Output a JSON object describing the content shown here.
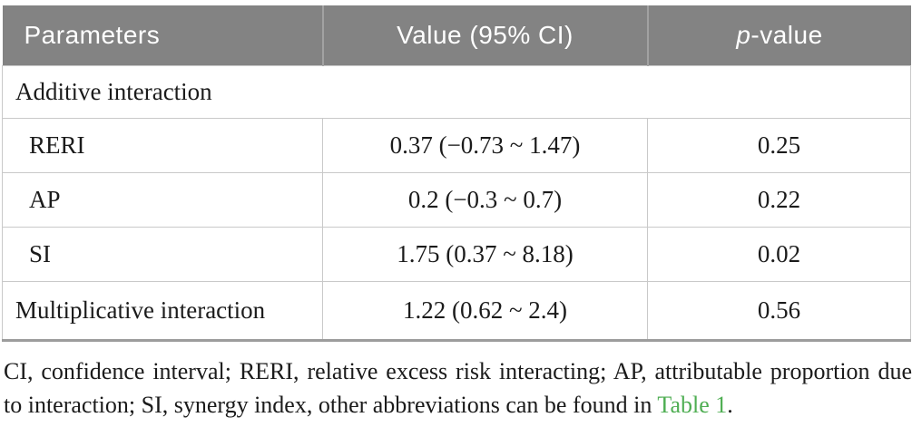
{
  "table": {
    "header": {
      "parameters": "Parameters",
      "value": "Value (95% CI)",
      "p_italic": "p",
      "p_rest": "-value"
    },
    "section": {
      "label": "Additive interaction"
    },
    "rows": [
      {
        "param": "RERI",
        "value": "0.37 (−0.73 ~ 1.47)",
        "p": "0.25"
      },
      {
        "param": "AP",
        "value": "0.2 (−0.3 ~ 0.7)",
        "p": "0.22"
      },
      {
        "param": "SI",
        "value": "1.75 (0.37 ~ 8.18)",
        "p": "0.02"
      },
      {
        "param": "Multiplicative interaction",
        "value": "1.22 (0.62 ~ 2.4)",
        "p": "0.56"
      }
    ]
  },
  "footnote": {
    "line1": "CI, confidence interval; RERI, relative excess risk interacting; AP, attributable proportion due",
    "line2_before_link": "to interaction; SI, synergy index, other abbreviations can be found in ",
    "link_text": "Table 1",
    "line2_after_link": "."
  },
  "colors": {
    "header_background": "#838383",
    "header_text": "#ffffff",
    "cell_border": "#c9c9c9",
    "table_bottom_border": "#9c9c9c",
    "link_green": "#4fae53",
    "body_text": "#1b1b1b"
  }
}
